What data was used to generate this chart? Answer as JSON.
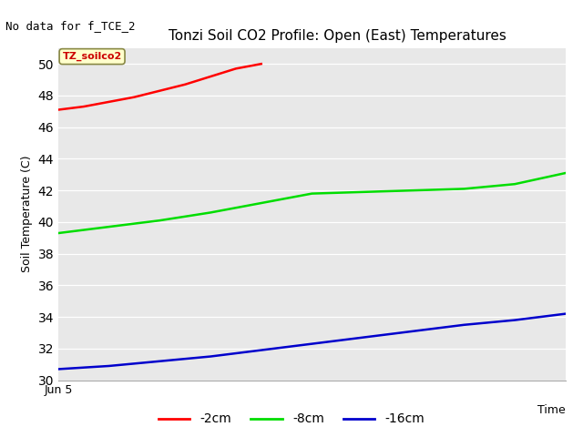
{
  "title": "Tonzi Soil CO2 Profile: Open (East) Temperatures",
  "no_data_label": "No data for f_TCE_2",
  "xlabel": "Time",
  "ylabel": "Soil Temperature (C)",
  "ylim": [
    30,
    51
  ],
  "yticks": [
    30,
    32,
    34,
    36,
    38,
    40,
    42,
    44,
    46,
    48,
    50
  ],
  "xstart_label": "Jun 5",
  "annotation_label": "TZ_soilco2",
  "bg_color": "#e8e8e8",
  "series": [
    {
      "label": "-2cm",
      "color": "#ff0000",
      "x": [
        0.0,
        0.05,
        0.1,
        0.15,
        0.2,
        0.25,
        0.3,
        0.35,
        0.4
      ],
      "y": [
        47.1,
        47.3,
        47.6,
        47.9,
        48.3,
        48.7,
        49.2,
        49.7,
        50.0
      ]
    },
    {
      "label": "-8cm",
      "color": "#00dd00",
      "x": [
        0.0,
        0.1,
        0.2,
        0.3,
        0.4,
        0.5,
        0.6,
        0.7,
        0.8,
        0.9,
        1.0
      ],
      "y": [
        39.3,
        39.7,
        40.1,
        40.6,
        41.2,
        41.8,
        41.9,
        42.0,
        42.1,
        42.4,
        43.1
      ]
    },
    {
      "label": "-16cm",
      "color": "#0000cc",
      "x": [
        0.0,
        0.1,
        0.2,
        0.3,
        0.4,
        0.5,
        0.6,
        0.7,
        0.8,
        0.9,
        1.0
      ],
      "y": [
        30.7,
        30.9,
        31.2,
        31.5,
        31.9,
        32.3,
        32.7,
        33.1,
        33.5,
        33.8,
        34.2
      ]
    }
  ],
  "legend_line_colors": [
    "#ff0000",
    "#00dd00",
    "#0000cc"
  ],
  "legend_labels": [
    "-2cm",
    "-8cm",
    "-16cm"
  ]
}
